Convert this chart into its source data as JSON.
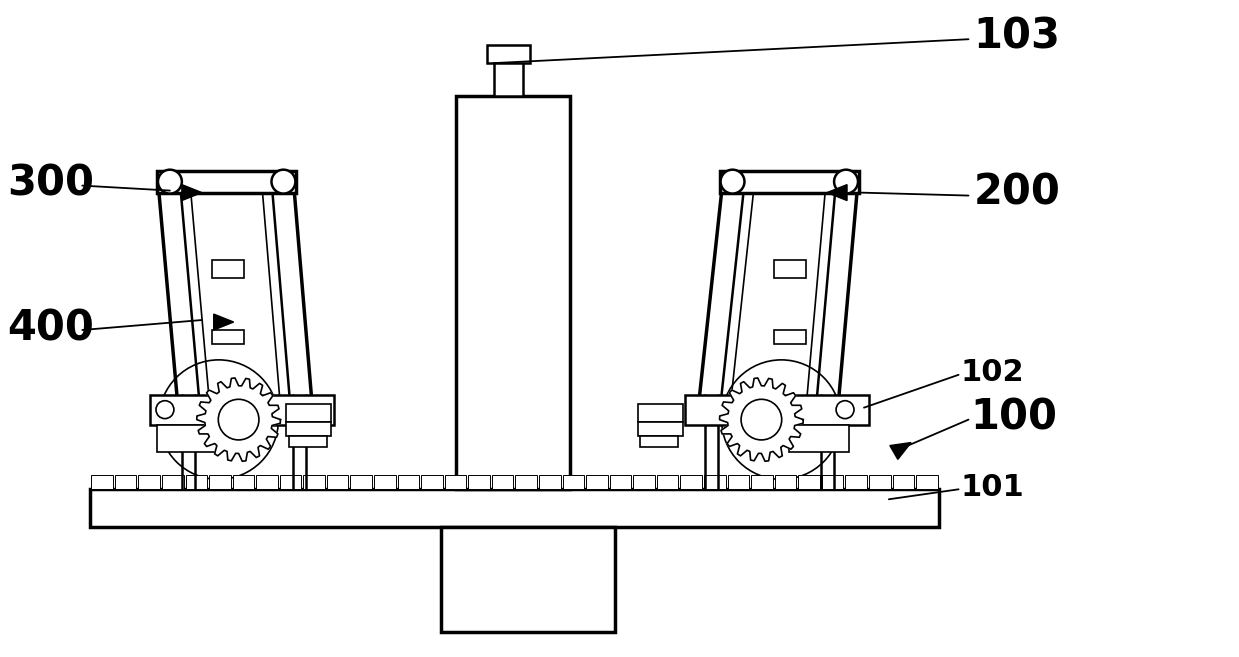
{
  "bg_color": "#ffffff",
  "line_color": "#000000",
  "lw_thin": 1.2,
  "lw_med": 1.8,
  "lw_thick": 2.5,
  "label_fontsize": 30,
  "label_fontsize_small": 22
}
